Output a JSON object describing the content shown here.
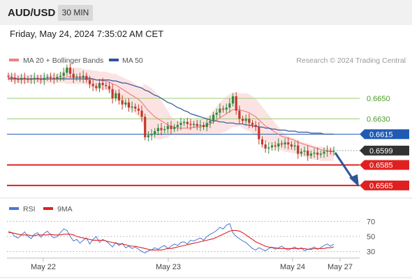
{
  "header": {
    "symbol": "AUD/USD",
    "timeframe": "30 MIN"
  },
  "timestamp": "Friday, May 24, 2024 7:35:02 AM CET",
  "colors": {
    "bollinger": "#f08080",
    "ma50": "#2f5597",
    "level_green": "#9acd70",
    "level_blue": "#1f5bb5",
    "level_red": "#e02020",
    "current": "#333333",
    "rsi": "#4a78d6",
    "rsi_ma": "#e02020",
    "up_candle": "#2e8b3e",
    "down_candle": "#c0392b",
    "arrow": "#2f5597"
  },
  "chart_data": [
    {
      "type": "candlestick",
      "title": "",
      "legend": [
        {
          "label": "MA 20 + Bollinger Bands",
          "color": "#f08080"
        },
        {
          "label": "MA 50",
          "color": "#2f5597"
        }
      ],
      "legend_position": "top-left",
      "credit": "Research © 2024 Trading Central",
      "ylim": [
        0.6554,
        0.6682
      ],
      "x_ticks": [
        "May 22",
        "May 23",
        "May 24",
        "May 27"
      ],
      "levels": [
        {
          "value": 0.665,
          "label": "0.6650",
          "kind": "resistance"
        },
        {
          "value": 0.663,
          "label": "0.6630",
          "kind": "resistance"
        },
        {
          "value": 0.6615,
          "label": "0.6615",
          "kind": "pivot"
        },
        {
          "value": 0.6599,
          "label": "0.6599",
          "kind": "current"
        },
        {
          "value": 0.6585,
          "label": "0.6585",
          "kind": "support"
        },
        {
          "value": 0.6565,
          "label": "0.6565",
          "kind": "support"
        }
      ],
      "close": [
        0.6671,
        0.667,
        0.6669,
        0.6668,
        0.667,
        0.6669,
        0.6668,
        0.6669,
        0.667,
        0.6669,
        0.6668,
        0.667,
        0.6671,
        0.667,
        0.6669,
        0.6671,
        0.6672,
        0.6675,
        0.668,
        0.6674,
        0.667,
        0.6671,
        0.667,
        0.6672,
        0.6668,
        0.6664,
        0.6662,
        0.666,
        0.6665,
        0.6663,
        0.6662,
        0.6659,
        0.665,
        0.6655,
        0.6648,
        0.6644,
        0.6646,
        0.6641,
        0.6642,
        0.664,
        0.6638,
        0.6632,
        0.6612,
        0.6614,
        0.6615,
        0.6618,
        0.6621,
        0.6619,
        0.662,
        0.6623,
        0.662,
        0.6622,
        0.6624,
        0.6626,
        0.6627,
        0.6625,
        0.6624,
        0.6625,
        0.6623,
        0.6624,
        0.6622,
        0.6626,
        0.6628,
        0.6634,
        0.6636,
        0.664,
        0.6639,
        0.6641,
        0.6645,
        0.6652,
        0.6638,
        0.663,
        0.6628,
        0.663,
        0.6626,
        0.6624,
        0.6622,
        0.661,
        0.6605,
        0.6601,
        0.6602,
        0.6604,
        0.6603,
        0.6606,
        0.6605,
        0.6607,
        0.6605,
        0.6603,
        0.6604,
        0.6596,
        0.6598,
        0.6599,
        0.6594,
        0.6596,
        0.6597,
        0.6595,
        0.6596,
        0.6598,
        0.6599,
        0.6598,
        0.6599
      ],
      "ma20": [
        0.667,
        0.667,
        0.667,
        0.6669,
        0.6669,
        0.6669,
        0.6669,
        0.6669,
        0.6669,
        0.6669,
        0.6669,
        0.6669,
        0.6669,
        0.6669,
        0.6669,
        0.6669,
        0.667,
        0.667,
        0.6671,
        0.6671,
        0.6671,
        0.6671,
        0.6671,
        0.6671,
        0.667,
        0.667,
        0.6669,
        0.6668,
        0.6668,
        0.6667,
        0.6667,
        0.6666,
        0.6664,
        0.6663,
        0.6661,
        0.6659,
        0.6657,
        0.6655,
        0.6653,
        0.6651,
        0.6649,
        0.6646,
        0.6642,
        0.6638,
        0.6635,
        0.6632,
        0.663,
        0.6628,
        0.6626,
        0.6624,
        0.6623,
        0.6622,
        0.6621,
        0.6621,
        0.6621,
        0.6621,
        0.6621,
        0.6622,
        0.6622,
        0.6622,
        0.6623,
        0.6624,
        0.6625,
        0.6627,
        0.6629,
        0.6631,
        0.6633,
        0.6635,
        0.6637,
        0.6639,
        0.6639,
        0.6639,
        0.6638,
        0.6637,
        0.6636,
        0.6634,
        0.6632,
        0.6629,
        0.6626,
        0.6623,
        0.6621,
        0.6619,
        0.6617,
        0.6615,
        0.6613,
        0.6612,
        0.6611,
        0.661,
        0.6609,
        0.6607,
        0.6606,
        0.6605,
        0.6604,
        0.6603,
        0.6602,
        0.6601,
        0.66,
        0.6599,
        0.6599,
        0.6598,
        0.6598
      ],
      "bb_upper": [
        0.6674,
        0.6674,
        0.6674,
        0.6673,
        0.6673,
        0.6673,
        0.6673,
        0.6673,
        0.6673,
        0.6673,
        0.6673,
        0.6673,
        0.6673,
        0.6673,
        0.6673,
        0.6674,
        0.6675,
        0.6677,
        0.668,
        0.668,
        0.668,
        0.668,
        0.668,
        0.6679,
        0.6678,
        0.6678,
        0.6677,
        0.6677,
        0.6676,
        0.6676,
        0.6676,
        0.6675,
        0.6674,
        0.6674,
        0.6672,
        0.6671,
        0.6669,
        0.6668,
        0.6666,
        0.6664,
        0.6662,
        0.6661,
        0.6664,
        0.6662,
        0.666,
        0.6657,
        0.6653,
        0.6648,
        0.6643,
        0.6638,
        0.6632,
        0.663,
        0.6628,
        0.6628,
        0.6628,
        0.6628,
        0.6628,
        0.6629,
        0.6629,
        0.6629,
        0.663,
        0.6632,
        0.6634,
        0.6638,
        0.6642,
        0.6646,
        0.6649,
        0.6652,
        0.6654,
        0.6656,
        0.6656,
        0.6655,
        0.6655,
        0.6655,
        0.6654,
        0.6652,
        0.665,
        0.6646,
        0.6642,
        0.6638,
        0.6634,
        0.663,
        0.6626,
        0.6622,
        0.6618,
        0.6615,
        0.6613,
        0.6612,
        0.6611,
        0.6609,
        0.6608,
        0.6607,
        0.6606,
        0.6605,
        0.6604,
        0.6603,
        0.6603,
        0.6602,
        0.6602,
        0.6601,
        0.6601
      ],
      "bb_lower": [
        0.6666,
        0.6666,
        0.6666,
        0.6665,
        0.6665,
        0.6665,
        0.6665,
        0.6665,
        0.6665,
        0.6665,
        0.6665,
        0.6665,
        0.6665,
        0.6665,
        0.6665,
        0.6665,
        0.6665,
        0.6665,
        0.6664,
        0.6664,
        0.6664,
        0.6664,
        0.6664,
        0.6664,
        0.6663,
        0.6662,
        0.6661,
        0.6659,
        0.6659,
        0.6658,
        0.6658,
        0.6657,
        0.6654,
        0.6652,
        0.6649,
        0.6646,
        0.6644,
        0.6641,
        0.6638,
        0.6635,
        0.6632,
        0.6628,
        0.6618,
        0.6614,
        0.6612,
        0.661,
        0.661,
        0.661,
        0.6611,
        0.6612,
        0.6614,
        0.6614,
        0.6614,
        0.6614,
        0.6614,
        0.6614,
        0.6614,
        0.6615,
        0.6615,
        0.6615,
        0.6616,
        0.6616,
        0.6616,
        0.6616,
        0.6616,
        0.6616,
        0.6617,
        0.6618,
        0.662,
        0.6622,
        0.6622,
        0.6623,
        0.6621,
        0.6619,
        0.6618,
        0.6616,
        0.6614,
        0.6612,
        0.661,
        0.6608,
        0.6606,
        0.6604,
        0.6602,
        0.66,
        0.6599,
        0.6598,
        0.6597,
        0.6597,
        0.6596,
        0.6595,
        0.6594,
        0.6593,
        0.6592,
        0.6591,
        0.659,
        0.659,
        0.6589,
        0.6589,
        0.6589,
        0.6589,
        0.6589
      ],
      "ma50": [
        0.6669,
        0.6669,
        0.6669,
        0.6669,
        0.6669,
        0.6669,
        0.6669,
        0.6669,
        0.6669,
        0.6669,
        0.6669,
        0.6669,
        0.6669,
        0.6669,
        0.6669,
        0.6669,
        0.6669,
        0.6669,
        0.6669,
        0.6669,
        0.6669,
        0.6669,
        0.6669,
        0.6669,
        0.6669,
        0.6669,
        0.6669,
        0.6668,
        0.6668,
        0.6668,
        0.6668,
        0.6668,
        0.6667,
        0.6667,
        0.6666,
        0.6665,
        0.6665,
        0.6664,
        0.6663,
        0.6662,
        0.6661,
        0.666,
        0.6658,
        0.6657,
        0.6655,
        0.6653,
        0.6652,
        0.665,
        0.6648,
        0.6646,
        0.6645,
        0.6643,
        0.6641,
        0.664,
        0.6638,
        0.6637,
        0.6635,
        0.6634,
        0.6633,
        0.6632,
        0.6631,
        0.663,
        0.6629,
        0.6628,
        0.6628,
        0.6627,
        0.6627,
        0.6626,
        0.6626,
        0.6626,
        0.6625,
        0.6625,
        0.6625,
        0.6624,
        0.6624,
        0.6623,
        0.6623,
        0.6622,
        0.6622,
        0.6621,
        0.6621,
        0.662,
        0.662,
        0.6619,
        0.6619,
        0.6619,
        0.6618,
        0.6618,
        0.6618,
        0.6617,
        0.6617,
        0.6617,
        0.6617,
        0.6616,
        0.6616,
        0.6616,
        0.6616,
        0.6615,
        0.6615,
        0.6615,
        0.6615
      ]
    },
    {
      "type": "line",
      "title": "",
      "legend": [
        {
          "label": "RSI",
          "color": "#4a78d6"
        },
        {
          "label": "9MA",
          "color": "#e02020"
        }
      ],
      "legend_position": "top-left",
      "ylim": [
        25,
        75
      ],
      "y_ticks": [
        70,
        50,
        30
      ],
      "rsi": [
        57,
        55,
        50,
        48,
        52,
        56,
        50,
        47,
        53,
        55,
        49,
        54,
        57,
        52,
        48,
        50,
        55,
        60,
        58,
        50,
        44,
        46,
        41,
        45,
        48,
        40,
        46,
        50,
        42,
        46,
        44,
        40,
        36,
        42,
        38,
        41,
        35,
        37,
        34,
        36,
        33,
        30,
        28,
        31,
        32,
        35,
        33,
        36,
        38,
        34,
        37,
        40,
        38,
        42,
        43,
        40,
        45,
        44,
        46,
        48,
        45,
        50,
        53,
        55,
        58,
        62,
        60,
        65,
        67,
        55,
        50,
        47,
        44,
        42,
        38,
        34,
        32,
        35,
        33,
        31,
        34,
        36,
        33,
        35,
        37,
        34,
        32,
        34,
        36,
        33,
        35,
        31,
        33,
        34,
        36,
        33,
        35,
        38,
        40,
        37,
        40
      ],
      "rsi_ma": [
        55,
        55,
        54,
        53,
        52,
        52,
        52,
        51,
        51,
        52,
        52,
        52,
        52,
        53,
        52,
        52,
        52,
        53,
        53,
        53,
        52,
        50,
        49,
        48,
        47,
        46,
        45,
        45,
        45,
        45,
        44,
        43,
        42,
        41,
        40,
        40,
        39,
        38,
        37,
        37,
        36,
        35,
        34,
        33,
        32,
        32,
        32,
        32,
        33,
        34,
        34,
        35,
        36,
        37,
        38,
        39,
        40,
        41,
        42,
        43,
        44,
        45,
        46,
        47,
        49,
        51,
        53,
        55,
        57,
        58,
        58,
        57,
        55,
        52,
        49,
        46,
        43,
        41,
        39,
        37,
        36,
        35,
        35,
        34,
        34,
        34,
        34,
        34,
        34,
        34,
        34,
        34,
        33,
        33,
        34,
        34,
        34,
        34,
        35,
        35,
        36
      ]
    }
  ]
}
